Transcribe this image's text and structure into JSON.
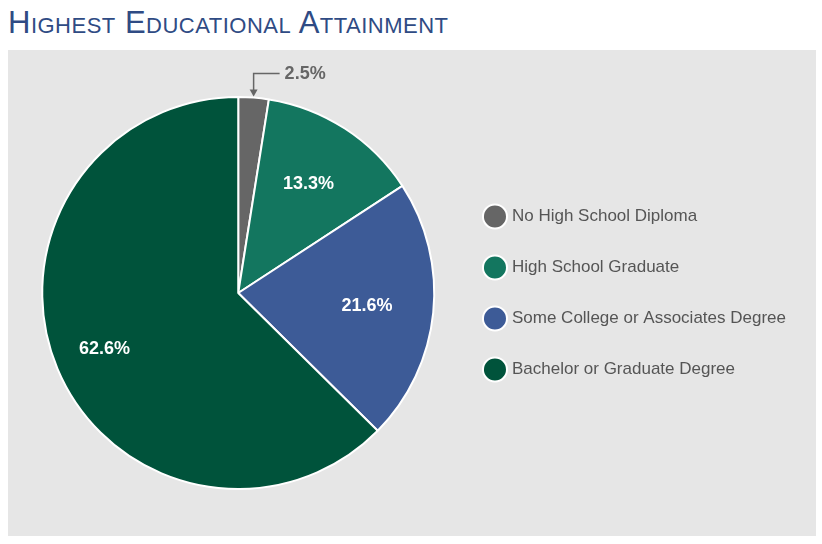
{
  "chart_data": {
    "type": "pie",
    "title": "Highest Educational Attainment",
    "categories": [
      "No High School Diploma",
      "High School Graduate",
      "Some College or Associates Degree",
      "Bachelor or Graduate Degree"
    ],
    "values": [
      2.5,
      13.3,
      21.6,
      62.6
    ],
    "value_labels": [
      "2.5%",
      "13.3%",
      "21.6%",
      "62.6%"
    ],
    "colors": [
      "#666666",
      "#13765f",
      "#3d5b97",
      "#00533b"
    ],
    "legend": "right",
    "data_labels": true
  }
}
